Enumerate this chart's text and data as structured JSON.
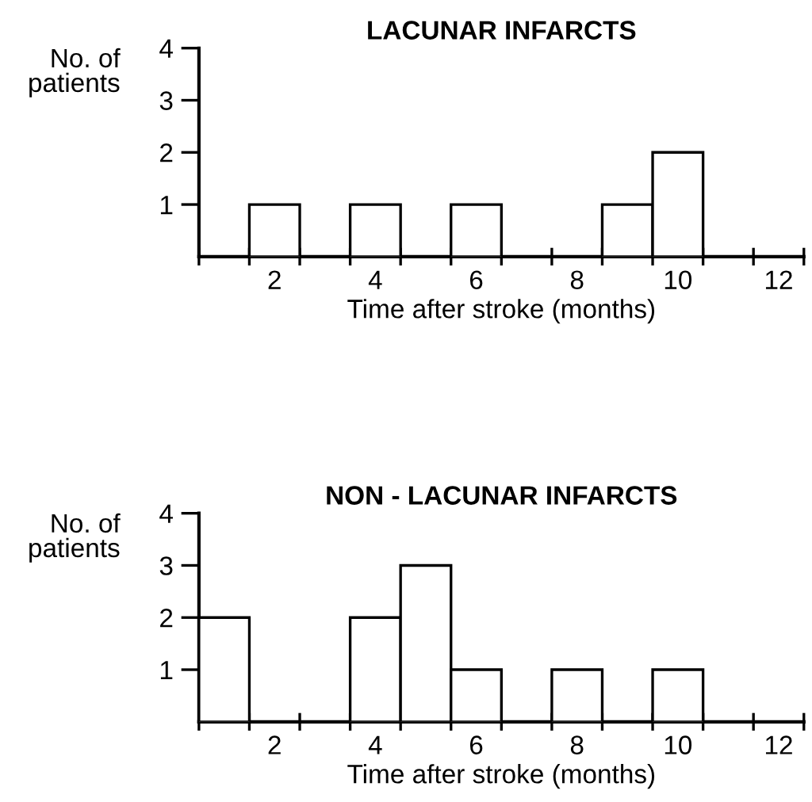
{
  "chart_data": [
    {
      "type": "histogram",
      "title": "LACUNAR INFARCTS",
      "xlabel": "Time after stroke (months)",
      "ylabel": "No. of\npatients",
      "bins": [
        0,
        1,
        2,
        3,
        4,
        5,
        6,
        7,
        8,
        9,
        10,
        11,
        12
      ],
      "values": [
        0,
        1,
        0,
        1,
        0,
        1,
        0,
        0,
        1,
        2,
        0,
        0
      ],
      "color": "#ffffff",
      "xlim": [
        0,
        12
      ],
      "ylim": [
        0,
        4
      ],
      "yticks": [
        1,
        2,
        3,
        4
      ],
      "xticks": [
        {
          "value": 0,
          "label": null
        },
        {
          "value": 1,
          "label": null
        },
        {
          "value": 1.5,
          "label": "2"
        },
        {
          "value": 2,
          "label": null
        },
        {
          "value": 3,
          "label": null
        },
        {
          "value": 3.5,
          "label": "4"
        },
        {
          "value": 4,
          "label": null
        },
        {
          "value": 5,
          "label": null
        },
        {
          "value": 5.5,
          "label": "6"
        },
        {
          "value": 6,
          "label": null
        },
        {
          "value": 7,
          "label": null
        },
        {
          "value": 7.5,
          "label": "8"
        },
        {
          "value": 8,
          "label": null
        },
        {
          "value": 9,
          "label": null
        },
        {
          "value": 9.5,
          "label": "10"
        },
        {
          "value": 10,
          "label": null
        },
        {
          "value": 11,
          "label": null
        },
        {
          "value": 11.5,
          "label": "12"
        },
        {
          "value": 12,
          "label": null
        }
      ]
    },
    {
      "type": "histogram",
      "title": "NON - LACUNAR INFARCTS",
      "xlabel": "Time after stroke (months)",
      "ylabel": "No. of\npatients",
      "bins": [
        0,
        1,
        2,
        3,
        4,
        5,
        6,
        7,
        8,
        9,
        10,
        11,
        12
      ],
      "values": [
        2,
        0,
        0,
        2,
        3,
        1,
        0,
        1,
        0,
        1,
        0,
        0
      ],
      "color": "#ffffff",
      "xlim": [
        0,
        12
      ],
      "ylim": [
        0,
        4
      ],
      "yticks": [
        1,
        2,
        3,
        4
      ],
      "xticks": [
        {
          "value": 0,
          "label": null
        },
        {
          "value": 1,
          "label": null
        },
        {
          "value": 1.5,
          "label": "2"
        },
        {
          "value": 2,
          "label": null
        },
        {
          "value": 3,
          "label": null
        },
        {
          "value": 3.5,
          "label": "4"
        },
        {
          "value": 4,
          "label": null
        },
        {
          "value": 5,
          "label": null
        },
        {
          "value": 5.5,
          "label": "6"
        },
        {
          "value": 6,
          "label": null
        },
        {
          "value": 7,
          "label": null
        },
        {
          "value": 7.5,
          "label": "8"
        },
        {
          "value": 8,
          "label": null
        },
        {
          "value": 9,
          "label": null
        },
        {
          "value": 9.5,
          "label": "10"
        },
        {
          "value": 10,
          "label": null
        },
        {
          "value": 11,
          "label": null
        },
        {
          "value": 11.5,
          "label": "12"
        },
        {
          "value": 12,
          "label": null
        }
      ]
    }
  ]
}
